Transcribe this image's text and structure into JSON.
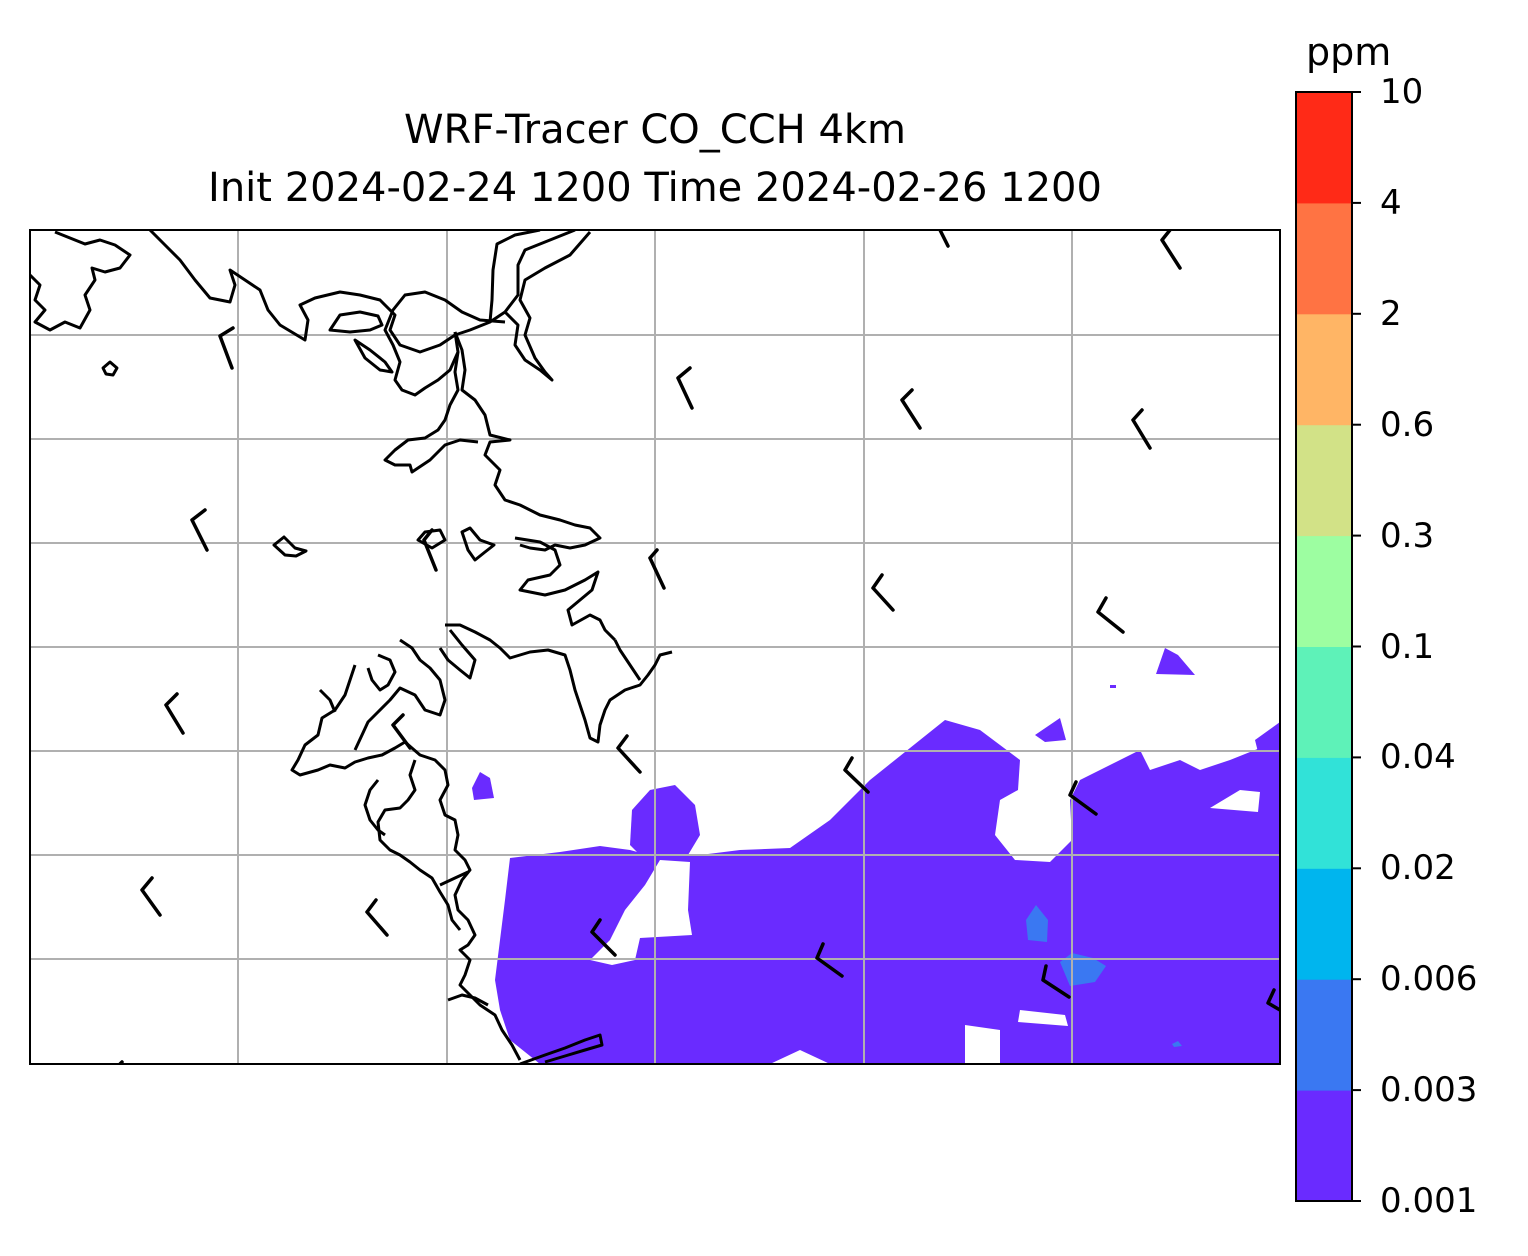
{
  "title": {
    "line1": "WRF-Tracer CO_CCH 4km",
    "line2": "Init 2024-02-24 1200 Time 2024-02-26 1200"
  },
  "colorbar": {
    "unit": "ppm",
    "levels": [
      "0.001",
      "0.003",
      "0.006",
      "0.02",
      "0.04",
      "0.1",
      "0.3",
      "0.6",
      "2",
      "4",
      "10"
    ],
    "colors": [
      "#6a2bff",
      "#3a78f2",
      "#00b5ee",
      "#31e2d8",
      "#5ef2b8",
      "#9dfea1",
      "#d2e287",
      "#ffb565",
      "#ff7343",
      "#ff2a17"
    ]
  },
  "map": {
    "field_color": "#6a2bff",
    "coastline_color": "#000000",
    "gridline_color": "#b0b0b0",
    "wind_barb_color": "#000000"
  }
}
